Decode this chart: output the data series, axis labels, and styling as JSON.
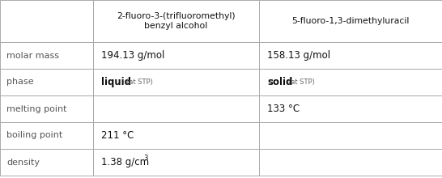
{
  "col_headers": [
    "2-fluoro-3-(trifluoromethyl)\nbenzyl alcohol",
    "5-fluoro-1,3-dimethyluracil"
  ],
  "row_headers": [
    "molar mass",
    "phase",
    "melting point",
    "boiling point",
    "density"
  ],
  "cells": [
    [
      "194.13 g/mol",
      "158.13 g/mol"
    ],
    [
      "liquid_stp",
      "solid_stp"
    ],
    [
      "",
      "133 °C"
    ],
    [
      "211 °C",
      ""
    ],
    [
      "1.38 g/cm³",
      ""
    ]
  ],
  "bg_color": "#ffffff",
  "grid_color": "#aaaaaa",
  "row_label_color": "#555555",
  "data_color": "#111111",
  "header_color": "#111111",
  "figsize": [
    5.46,
    2.2
  ],
  "dpi": 100
}
